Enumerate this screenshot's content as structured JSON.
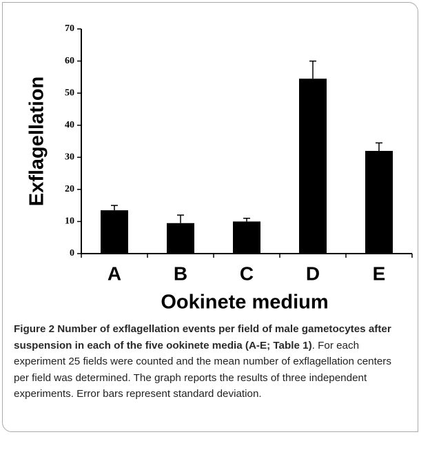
{
  "chart_data": {
    "type": "bar",
    "categories": [
      "A",
      "B",
      "C",
      "D",
      "E"
    ],
    "values": [
      13.5,
      9.5,
      10,
      54.5,
      32
    ],
    "errors": [
      1.5,
      2.5,
      1,
      5.5,
      2.5
    ],
    "color": "#000000",
    "xlabel": "Ookinete medium",
    "ylabel": "Exflagellation",
    "ylim": [
      0,
      70
    ],
    "yticks": [
      0,
      10,
      20,
      30,
      40,
      50,
      60,
      70
    ],
    "grid": false
  },
  "caption": {
    "bold": "Figure 2 Number of exflagellation events per field of male gametocytes after suspension in each of the five ookinete media (A-E; Table 1)",
    "text": ". For each experiment 25 fields were counted and the mean number of exflagellation centers per field was determined. The graph reports the results of three independent experiments. Error bars represent standard deviation."
  }
}
